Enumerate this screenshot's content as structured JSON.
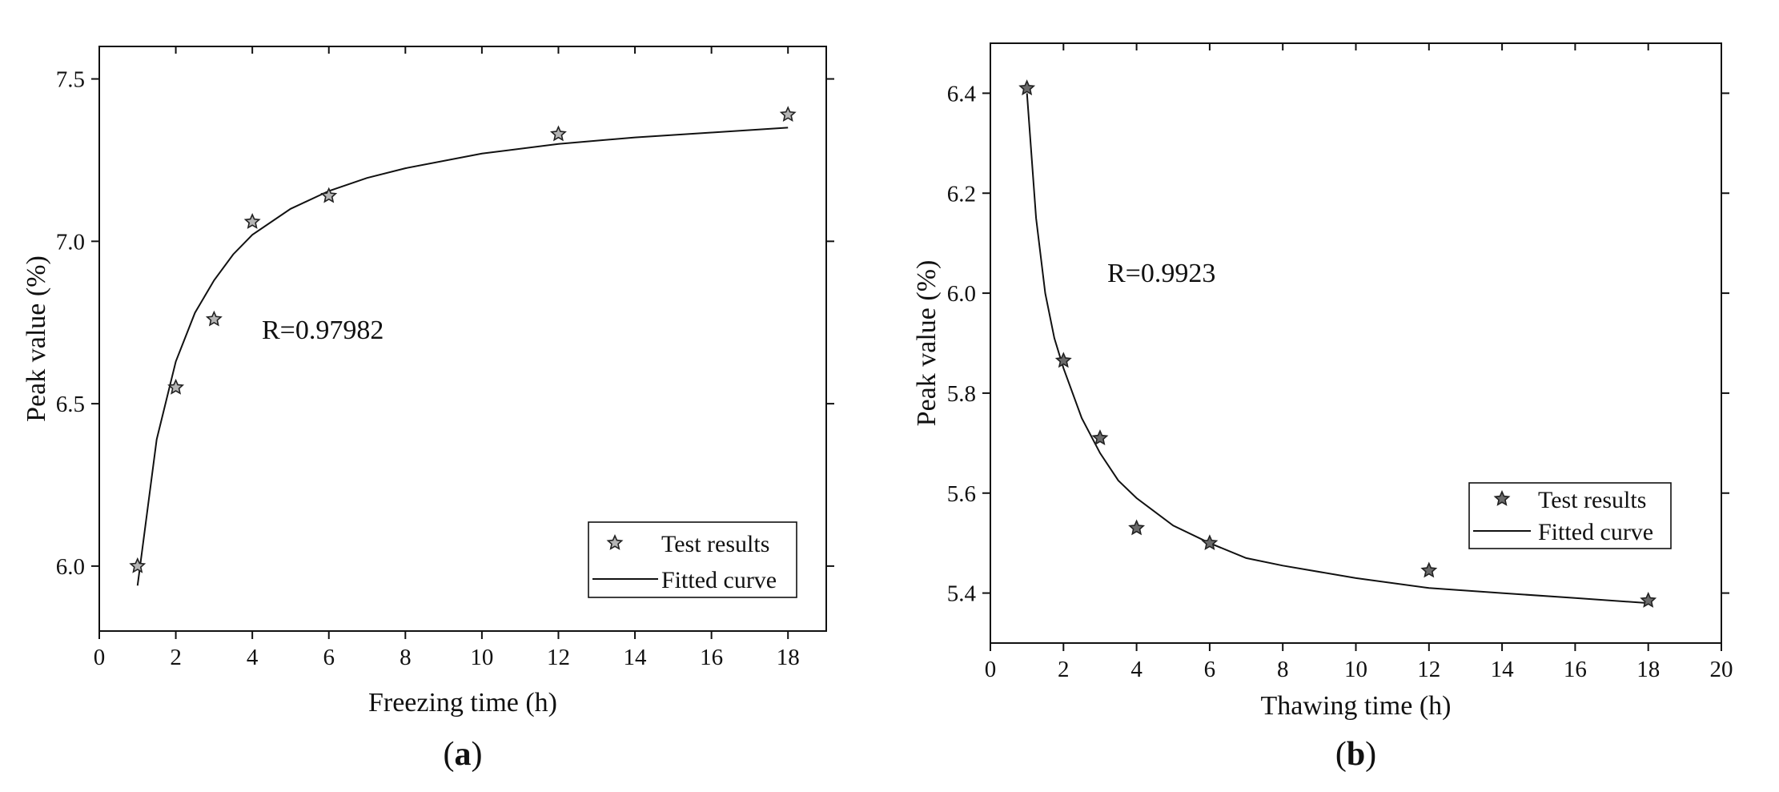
{
  "chart_data": [
    {
      "type": "scatter",
      "panel_label": "a",
      "xlabel": "Freezing time (h)",
      "ylabel": "Peak value (%)",
      "xlim": [
        0,
        19
      ],
      "ylim": [
        5.8,
        7.6
      ],
      "xticks": [
        0,
        2,
        4,
        6,
        8,
        10,
        12,
        14,
        16,
        18
      ],
      "yticks": [
        6.0,
        6.5,
        7.0,
        7.5
      ],
      "ytick_labels": [
        "6.0",
        "6.5",
        "7.0",
        "7.5"
      ],
      "annotation": "R=0.97982",
      "legend": {
        "position": "bottom-right",
        "entries": [
          "Test results",
          "Fitted curve"
        ]
      },
      "series": [
        {
          "name": "Test results",
          "marker": "star",
          "x": [
            1,
            2,
            3,
            4,
            6,
            12,
            18
          ],
          "y": [
            6.0,
            6.55,
            6.76,
            7.06,
            7.14,
            7.33,
            7.39
          ]
        },
        {
          "name": "Fitted curve",
          "style": "line",
          "x": [
            1,
            1.5,
            2,
            2.5,
            3,
            3.5,
            4,
            5,
            6,
            7,
            8,
            10,
            12,
            14,
            16,
            18
          ],
          "y": [
            5.94,
            6.39,
            6.63,
            6.78,
            6.88,
            6.96,
            7.02,
            7.1,
            7.155,
            7.195,
            7.225,
            7.27,
            7.3,
            7.32,
            7.335,
            7.35
          ]
        }
      ]
    },
    {
      "type": "scatter",
      "panel_label": "b",
      "xlabel": "Thawing time (h)",
      "ylabel": "Peak value (%)",
      "xlim": [
        0,
        20
      ],
      "ylim": [
        5.3,
        6.5
      ],
      "xticks": [
        0,
        2,
        4,
        6,
        8,
        10,
        12,
        14,
        16,
        18,
        20
      ],
      "yticks": [
        5.4,
        5.6,
        5.8,
        6.0,
        6.2,
        6.4
      ],
      "ytick_labels": [
        "5.4",
        "5.6",
        "5.8",
        "6.0",
        "6.2",
        "6.4"
      ],
      "annotation": "R=0.9923",
      "legend": {
        "position": "right",
        "entries": [
          "Test results",
          "Fitted curve"
        ]
      },
      "series": [
        {
          "name": "Test results",
          "marker": "star",
          "x": [
            1,
            2,
            3,
            4,
            6,
            12,
            18
          ],
          "y": [
            6.41,
            5.865,
            5.71,
            5.53,
            5.5,
            5.445,
            5.385
          ]
        },
        {
          "name": "Fitted curve",
          "style": "line",
          "x": [
            1,
            1.25,
            1.5,
            1.75,
            2,
            2.5,
            3,
            3.5,
            4,
            5,
            6,
            7,
            8,
            10,
            12,
            14,
            16,
            18
          ],
          "y": [
            6.4,
            6.15,
            6.0,
            5.91,
            5.85,
            5.75,
            5.68,
            5.625,
            5.59,
            5.535,
            5.5,
            5.47,
            5.455,
            5.43,
            5.41,
            5.4,
            5.39,
            5.38
          ]
        }
      ]
    }
  ]
}
